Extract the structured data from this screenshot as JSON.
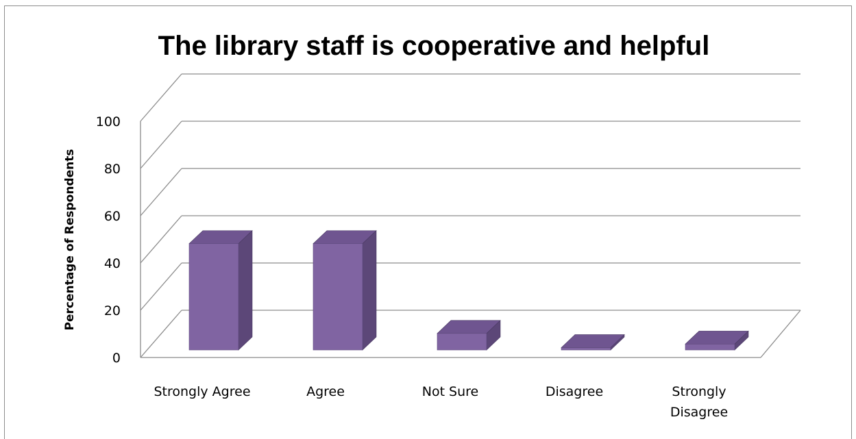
{
  "chart_data": {
    "type": "bar",
    "title": "The library staff is cooperative and helpful",
    "ylabel": "Percentage of Respondents",
    "xlabel": "",
    "categories": [
      "Strongly Agree",
      "Agree",
      "Not Sure",
      "Disagree",
      "Strongly Disagree"
    ],
    "category_lines": [
      [
        "Strongly Agree"
      ],
      [
        "Agree"
      ],
      [
        "Not Sure"
      ],
      [
        "Disagree"
      ],
      [
        "Strongly",
        "Disagree"
      ]
    ],
    "values": [
      45,
      45,
      7,
      1,
      2.5
    ],
    "ylim": [
      0,
      100
    ],
    "yticks": [
      "0",
      "20",
      "40",
      "60",
      "80",
      "100"
    ],
    "grid": true,
    "legend": "none",
    "colors": {
      "bar_front": "#8064A2",
      "bar_side": "#5C4778",
      "bar_top": "#6F5590",
      "grid": "#8c8c8c"
    }
  }
}
